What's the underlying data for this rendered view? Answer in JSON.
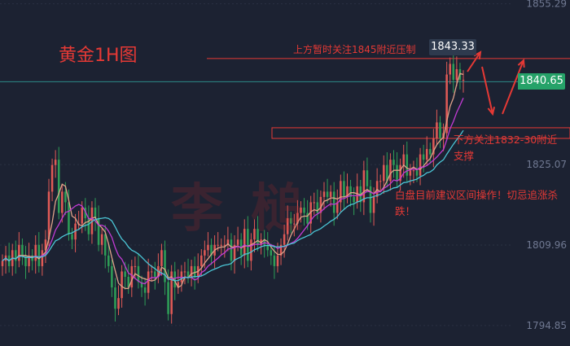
{
  "title": "黄金1H图",
  "watermark": "李 槌",
  "annotations": {
    "resistance": "上方暂时关注1845附近压制",
    "support_line1": "下方关注1832-30附近",
    "support_line2": "支撑",
    "ops_line1": "白盘目前建议区间操作！切忌追涨杀",
    "ops_line2": "跌！"
  },
  "price_box": "1843.33",
  "last_price": "1840.65",
  "colors": {
    "background": "#1c2232",
    "up": "#e05a56",
    "down": "#2e9e57",
    "annotation": "#e53935",
    "ma_short": "#e0a38a",
    "ma_mid": "#c23bd4",
    "ma_long": "#4bc6d6",
    "last_price_bg": "#26a269"
  },
  "chart_data": {
    "type": "candlestick",
    "ylim": [
      1791,
      1856
    ],
    "y_ticks": [
      {
        "value": 1855.29,
        "label": "1855.29"
      },
      {
        "value": 1825.07,
        "label": "1825.07"
      },
      {
        "value": 1809.96,
        "label": "1809.96"
      },
      {
        "value": 1794.85,
        "label": "1794.85"
      }
    ],
    "resistance_level": 1845,
    "support_zone": [
      1832,
      1830
    ],
    "current_price_line": 1840.65,
    "closes": [
      1807,
      1808,
      1806,
      1809,
      1807,
      1810,
      1808,
      1806,
      1808,
      1807,
      1810,
      1806,
      1809,
      1811,
      1820,
      1825,
      1826,
      1816,
      1820,
      1818,
      1812,
      1811,
      1814,
      1814,
      1817,
      1815,
      1812,
      1817,
      1815,
      1810,
      1812,
      1808,
      1806,
      1802,
      1798,
      1800,
      1805,
      1804,
      1802,
      1806,
      1806,
      1803,
      1802,
      1801,
      1805,
      1805,
      1804,
      1806,
      1809,
      1803,
      1797,
      1805,
      1802,
      1803,
      1805,
      1805,
      1804,
      1806,
      1804,
      1806,
      1808,
      1809,
      1810,
      1808,
      1810,
      1810,
      1810,
      1810,
      1811,
      1807,
      1810,
      1811,
      1808,
      1813,
      1807,
      1811,
      1813,
      1810,
      1811,
      1810,
      1809,
      1808,
      1806,
      1808,
      1810,
      1812,
      1815,
      1814,
      1814,
      1816,
      1817,
      1816,
      1814,
      1818,
      1818,
      1816,
      1819,
      1820,
      1819,
      1820,
      1816,
      1818,
      1822,
      1819,
      1821,
      1819,
      1818,
      1821,
      1818,
      1824,
      1821,
      1816,
      1819,
      1822,
      1822,
      1825,
      1822,
      1826,
      1825,
      1822,
      1825,
      1827,
      1823,
      1824,
      1824,
      1823,
      1827,
      1826,
      1828,
      1827,
      1830,
      1833,
      1830,
      1831,
      1842,
      1844,
      1841,
      1843,
      1841,
      1841
    ]
  }
}
